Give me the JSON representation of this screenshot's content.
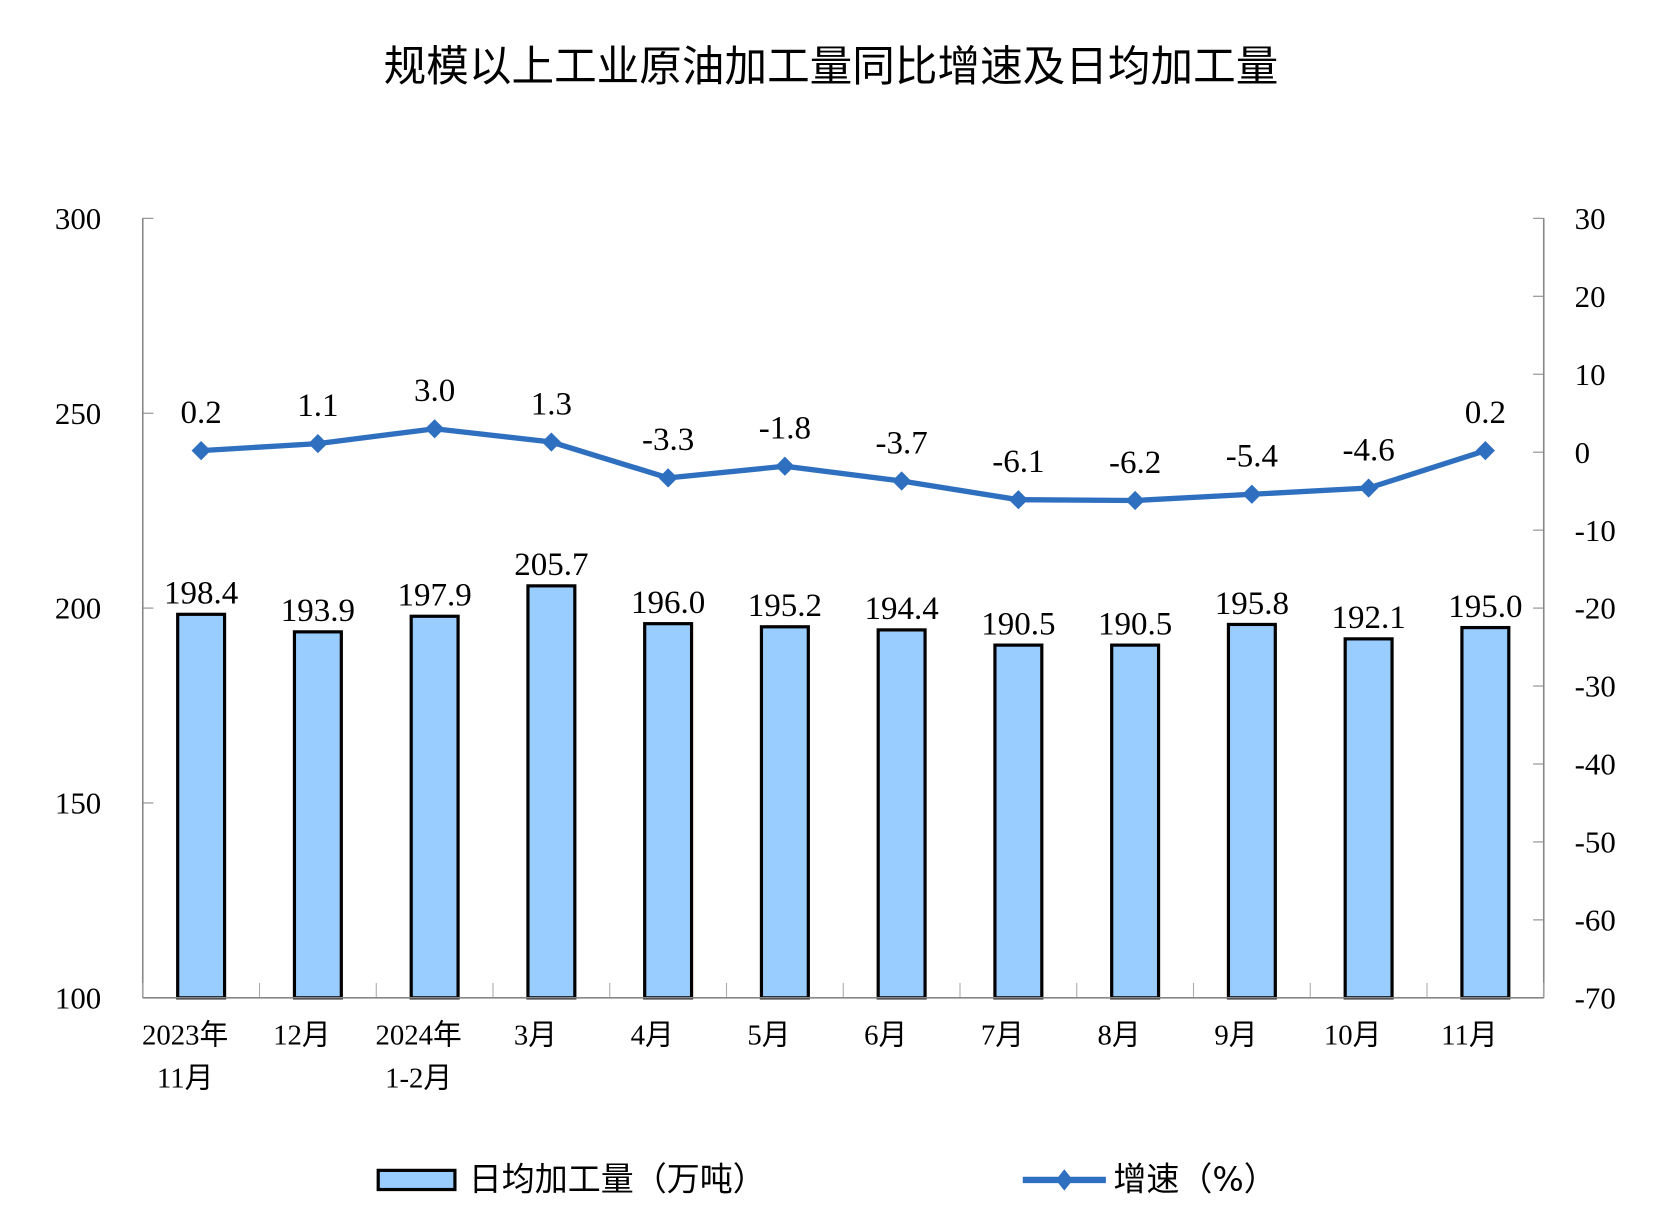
{
  "chart_data": {
    "type": "bar+line",
    "title": "规模以上工业原油加工量同比增速及日均加工量",
    "categories": [
      [
        "2023年",
        "11月"
      ],
      [
        "12月"
      ],
      [
        "2024年",
        "1-2月"
      ],
      [
        "3月"
      ],
      [
        "4月"
      ],
      [
        "5月"
      ],
      [
        "6月"
      ],
      [
        "7月"
      ],
      [
        "8月"
      ],
      [
        "9月"
      ],
      [
        "10月"
      ],
      [
        "11月"
      ]
    ],
    "series": [
      {
        "name": "日均加工量（万吨）",
        "type": "bar",
        "axis": "left",
        "color": "#99CCFF",
        "values": [
          198.4,
          193.9,
          197.9,
          205.7,
          196.0,
          195.2,
          194.4,
          190.5,
          190.5,
          195.8,
          192.1,
          195.0
        ],
        "labels": [
          "198.4",
          "193.9",
          "197.9",
          "205.7",
          "196.0",
          "195.2",
          "194.4",
          "190.5",
          "190.5",
          "195.8",
          "192.1",
          "195.0"
        ]
      },
      {
        "name": "增速（%）",
        "type": "line",
        "axis": "right",
        "color": "#2E6FBF",
        "marker": "diamond",
        "values": [
          0.2,
          1.1,
          3.0,
          1.3,
          -3.3,
          -1.8,
          -3.7,
          -6.1,
          -6.2,
          -5.4,
          -4.6,
          0.2
        ],
        "labels": [
          "0.2",
          "1.1",
          "3.0",
          "1.3",
          "-3.3",
          "-1.8",
          "-3.7",
          "-6.1",
          "-6.2",
          "-5.4",
          "-4.6",
          "0.2"
        ]
      }
    ],
    "left_axis": {
      "range": [
        100,
        300
      ],
      "ticks": [
        "100",
        "150",
        "200",
        "250",
        "300"
      ]
    },
    "right_axis": {
      "range": [
        -70,
        30
      ],
      "ticks": [
        "-70",
        "-60",
        "-50",
        "-40",
        "-30",
        "-20",
        "-10",
        "0",
        "10",
        "20",
        "30"
      ]
    },
    "grid": false,
    "legend": "bottom"
  }
}
